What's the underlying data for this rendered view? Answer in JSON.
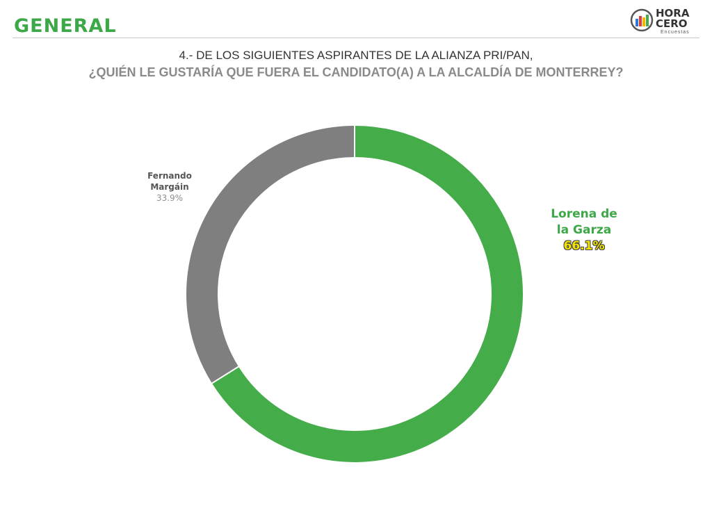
{
  "header": {
    "section_title": "GENERAL"
  },
  "logo": {
    "line1": "HORA",
    "line2": "CERO",
    "sub": "Encuestas"
  },
  "question": {
    "line1": "4.- DE LOS SIGUIENTES ASPIRANTES DE LA ALIANZA PRI/PAN,",
    "line2": "¿QUIÉN LE GUSTARÍA QUE FUERA EL CANDIDATO(A) A LA ALCALDÍA DE MONTERREY?"
  },
  "chart_data": {
    "type": "pie",
    "style": "donut",
    "slices": [
      {
        "label": "Lorena de la Garza",
        "value": 66.1,
        "display": "66.1%",
        "color": "#44ac49"
      },
      {
        "label": "Fernando Margáin",
        "value": 33.9,
        "display": "33.9%",
        "color": "#7f7f7f"
      }
    ],
    "labels": {
      "lorena": {
        "line1": "Lorena de",
        "line2": "la Garza",
        "pct": "66.1%"
      },
      "fernando": {
        "line1": "Fernando",
        "line2": "Margáin",
        "pct": "33.9%"
      }
    },
    "legend": "none"
  }
}
